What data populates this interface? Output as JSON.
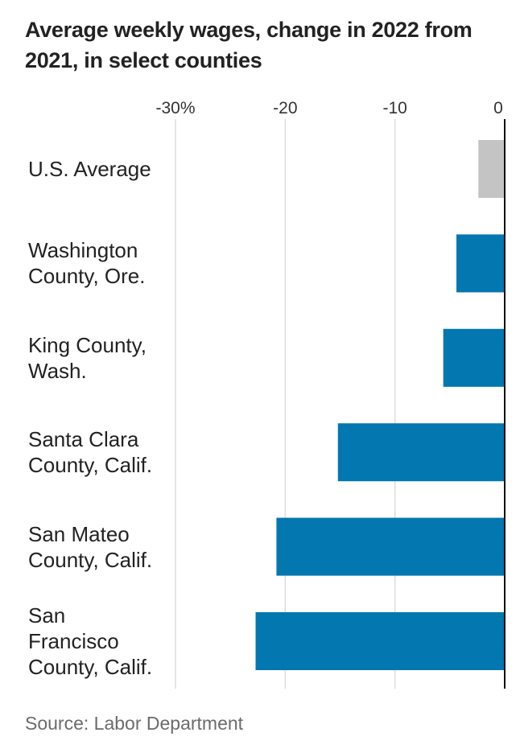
{
  "title": "Average weekly wages, change in 2022 from 2021, in select counties",
  "source": "Source: Labor Department",
  "colors": {
    "highlight": "#0277b0",
    "average": "#c4c4c4",
    "grid": "#dddddd",
    "axis": "#111111"
  },
  "chart_data": {
    "type": "bar",
    "orientation": "horizontal",
    "categories": [
      "U.S. Average",
      "Washington County, Ore.",
      "King County, Wash.",
      "Santa Clara County, Calif.",
      "San Mateo County, Calif.",
      "San Francisco County, Calif."
    ],
    "category_lines": [
      [
        "U.S. Average"
      ],
      [
        "Washington",
        "County, Ore."
      ],
      [
        "King County,",
        "Wash."
      ],
      [
        "Santa Clara",
        "County, Calif."
      ],
      [
        "San Mateo",
        "County, Calif."
      ],
      [
        "San",
        "Francisco",
        "County, Calif."
      ]
    ],
    "values": [
      -2.4,
      -4.4,
      -5.6,
      -15.2,
      -20.8,
      -22.7
    ],
    "bar_colors": [
      "#c4c4c4",
      "#0277b0",
      "#0277b0",
      "#0277b0",
      "#0277b0",
      "#0277b0"
    ],
    "xlim": [
      -30,
      0
    ],
    "ticks": [
      -30,
      -20,
      -10,
      0
    ],
    "tick_labels": [
      "-30%",
      "-20",
      "-10",
      "0"
    ],
    "grid": true,
    "xlabel": "",
    "ylabel": ""
  }
}
